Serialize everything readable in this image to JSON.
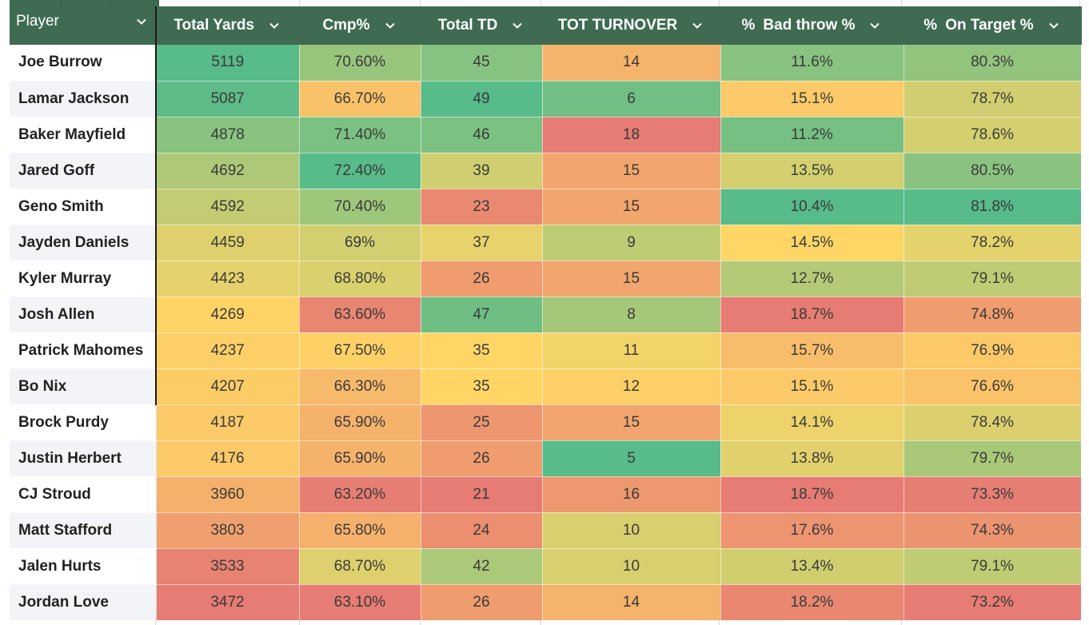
{
  "colors": {
    "header_bg": "#3f6b52",
    "header_text": "#ffffff",
    "scale_green": "#57bb8a",
    "scale_yellow": "#ffd666",
    "scale_red": "#e67c73"
  },
  "table": {
    "headers": [
      {
        "prefix": "",
        "label": "Player"
      },
      {
        "prefix": "",
        "label": "Total Yards"
      },
      {
        "prefix": "",
        "label": "Cmp%"
      },
      {
        "prefix": "",
        "label": "Total TD"
      },
      {
        "prefix": "",
        "label": "TOT TURNOVER"
      },
      {
        "prefix": "%",
        "label": "Bad throw %"
      },
      {
        "prefix": "%",
        "label": "On Target %"
      }
    ],
    "dropdown_icon": "chevron-down-icon",
    "rows": [
      {
        "player": "Joe Burrow",
        "total_yards": "5119",
        "cmp_pct": "70.60%",
        "total_td": "45",
        "tot_turnover": "14",
        "bad_throw_pct": "11.6%",
        "on_target_pct": "80.3%"
      },
      {
        "player": "Lamar Jackson",
        "total_yards": "5087",
        "cmp_pct": "66.70%",
        "total_td": "49",
        "tot_turnover": "6",
        "bad_throw_pct": "15.1%",
        "on_target_pct": "78.7%"
      },
      {
        "player": "Baker Mayfield",
        "total_yards": "4878",
        "cmp_pct": "71.40%",
        "total_td": "46",
        "tot_turnover": "18",
        "bad_throw_pct": "11.2%",
        "on_target_pct": "78.6%"
      },
      {
        "player": "Jared Goff",
        "total_yards": "4692",
        "cmp_pct": "72.40%",
        "total_td": "39",
        "tot_turnover": "15",
        "bad_throw_pct": "13.5%",
        "on_target_pct": "80.5%"
      },
      {
        "player": "Geno Smith",
        "total_yards": "4592",
        "cmp_pct": "70.40%",
        "total_td": "23",
        "tot_turnover": "15",
        "bad_throw_pct": "10.4%",
        "on_target_pct": "81.8%"
      },
      {
        "player": "Jayden Daniels",
        "total_yards": "4459",
        "cmp_pct": "69%",
        "total_td": "37",
        "tot_turnover": "9",
        "bad_throw_pct": "14.5%",
        "on_target_pct": "78.2%"
      },
      {
        "player": "Kyler Murray",
        "total_yards": "4423",
        "cmp_pct": "68.80%",
        "total_td": "26",
        "tot_turnover": "15",
        "bad_throw_pct": "12.7%",
        "on_target_pct": "79.1%"
      },
      {
        "player": "Josh Allen",
        "total_yards": "4269",
        "cmp_pct": "63.60%",
        "total_td": "47",
        "tot_turnover": "8",
        "bad_throw_pct": "18.7%",
        "on_target_pct": "74.8%"
      },
      {
        "player": "Patrick Mahomes",
        "total_yards": "4237",
        "cmp_pct": "67.50%",
        "total_td": "35",
        "tot_turnover": "11",
        "bad_throw_pct": "15.7%",
        "on_target_pct": "76.9%"
      },
      {
        "player": "Bo Nix",
        "total_yards": "4207",
        "cmp_pct": "66.30%",
        "total_td": "35",
        "tot_turnover": "12",
        "bad_throw_pct": "15.1%",
        "on_target_pct": "76.6%"
      },
      {
        "player": "Brock Purdy",
        "total_yards": "4187",
        "cmp_pct": "65.90%",
        "total_td": "25",
        "tot_turnover": "15",
        "bad_throw_pct": "14.1%",
        "on_target_pct": "78.4%"
      },
      {
        "player": "Justin Herbert",
        "total_yards": "4176",
        "cmp_pct": "65.90%",
        "total_td": "26",
        "tot_turnover": "5",
        "bad_throw_pct": "13.8%",
        "on_target_pct": "79.7%"
      },
      {
        "player": "CJ Stroud",
        "total_yards": "3960",
        "cmp_pct": "63.20%",
        "total_td": "21",
        "tot_turnover": "16",
        "bad_throw_pct": "18.7%",
        "on_target_pct": "73.3%"
      },
      {
        "player": "Matt Stafford",
        "total_yards": "3803",
        "cmp_pct": "65.80%",
        "total_td": "24",
        "tot_turnover": "10",
        "bad_throw_pct": "17.6%",
        "on_target_pct": "74.3%"
      },
      {
        "player": "Jalen Hurts",
        "total_yards": "3533",
        "cmp_pct": "68.70%",
        "total_td": "42",
        "tot_turnover": "10",
        "bad_throw_pct": "13.4%",
        "on_target_pct": "79.1%"
      },
      {
        "player": "Jordan Love",
        "total_yards": "3472",
        "cmp_pct": "63.10%",
        "total_td": "26",
        "tot_turnover": "14",
        "bad_throw_pct": "18.2%",
        "on_target_pct": "73.2%"
      }
    ]
  }
}
